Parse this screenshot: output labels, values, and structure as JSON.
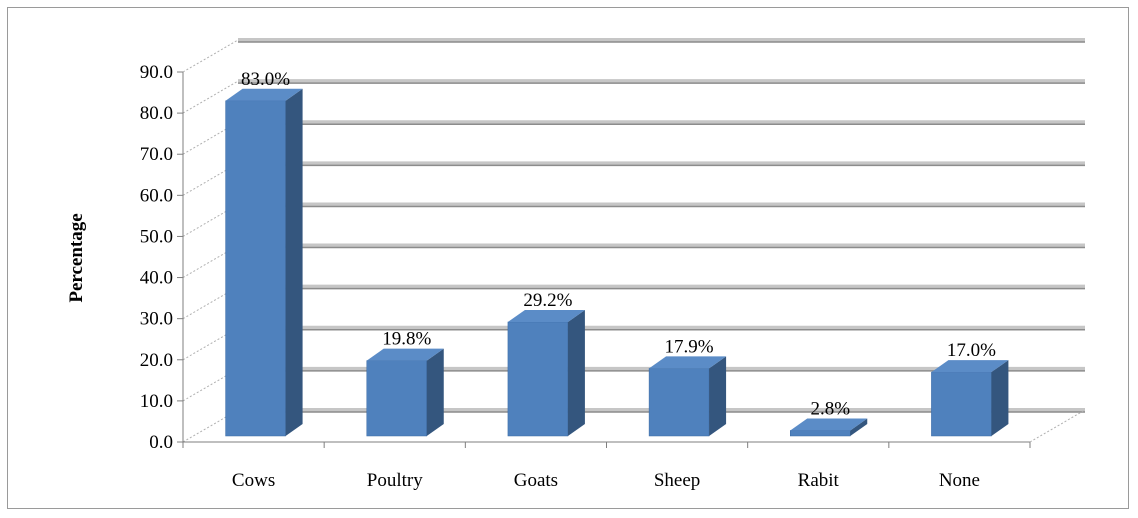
{
  "chart_data": {
    "type": "bar",
    "style": "3d-column",
    "title": "",
    "xlabel": "",
    "ylabel": "Percentage",
    "categories": [
      "Cows",
      "Poultry",
      "Goats",
      "Sheep",
      "Rabit",
      "None"
    ],
    "values": [
      83.0,
      19.8,
      29.2,
      17.9,
      2.8,
      17.0
    ],
    "data_labels": [
      "83.0%",
      "19.8%",
      "29.2%",
      "17.9%",
      "2.8%",
      "17.0%"
    ],
    "ylim": [
      0,
      90
    ],
    "yticks": [
      "0.0",
      "10.0",
      "20.0",
      "30.0",
      "40.0",
      "50.0",
      "60.0",
      "70.0",
      "80.0",
      "90.0"
    ],
    "grid": true,
    "legend": "none"
  },
  "colors": {
    "bar_front": "#4f81bd",
    "bar_side": "#34567e",
    "bar_top": "#5b8cc7",
    "grid": "#8c8c8c",
    "axis": "#7f7f7f"
  }
}
